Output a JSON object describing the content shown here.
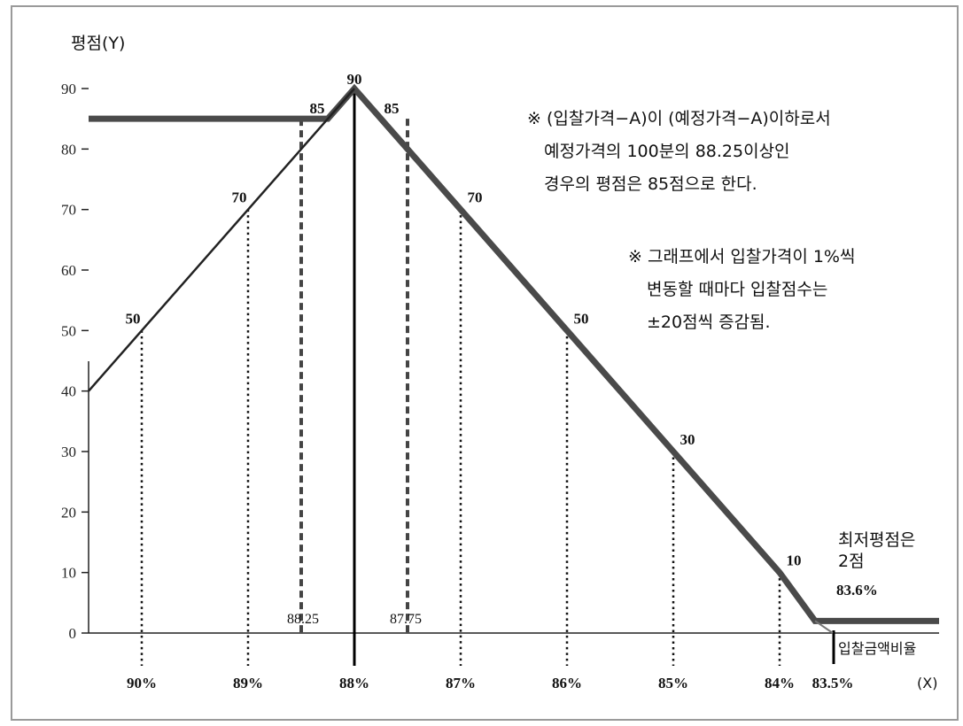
{
  "chart_data": {
    "type": "line",
    "ylabel": "평점(Y)",
    "ylim": [
      0,
      90
    ],
    "yticks": [
      "0",
      "10",
      "20",
      "30",
      "40",
      "50",
      "60",
      "70",
      "80",
      "90"
    ],
    "xticks": [
      {
        "label": "90%",
        "value": 90
      },
      {
        "label": "89%",
        "value": 89
      },
      {
        "label": "88%",
        "value": 88
      },
      {
        "label": "87%",
        "value": 87
      },
      {
        "label": "86%",
        "value": 86
      },
      {
        "label": "85%",
        "value": 85
      },
      {
        "label": "84%",
        "value": 84
      },
      {
        "label": "83.5%",
        "value": 83.5
      }
    ],
    "x_axis_unit": "(X)",
    "x_axis_name": "입찰금액비율",
    "series": [
      {
        "style": "thick",
        "points": [
          {
            "x": 90.48,
            "y": 85
          },
          {
            "x": 88.25,
            "y": 85
          },
          {
            "x": 88,
            "y": 90
          },
          {
            "x": 87,
            "y": 70
          },
          {
            "x": 86,
            "y": 50
          },
          {
            "x": 85,
            "y": 30
          },
          {
            "x": 84,
            "y": 10
          },
          {
            "x": 83.6,
            "y": 2
          },
          {
            "x": 82.9,
            "y": 2
          }
        ]
      },
      {
        "style": "thin",
        "points": [
          {
            "x": 90.48,
            "y": 40
          },
          {
            "x": 90,
            "y": 50
          },
          {
            "x": 89,
            "y": 70
          },
          {
            "x": 88.25,
            "y": 85
          },
          {
            "x": 88,
            "y": 90
          }
        ]
      }
    ],
    "point_labels": [
      {
        "text": "90",
        "x": 88,
        "y": 90
      },
      {
        "text": "85",
        "x": 88.25,
        "y": 85,
        "side": "left"
      },
      {
        "text": "85",
        "x": 87.75,
        "y": 85,
        "side": "right"
      },
      {
        "text": "70",
        "x": 89,
        "y": 70
      },
      {
        "text": "70",
        "x": 87,
        "y": 70
      },
      {
        "text": "50",
        "x": 90,
        "y": 50
      },
      {
        "text": "50",
        "x": 86,
        "y": 50
      },
      {
        "text": "30",
        "x": 85,
        "y": 30
      },
      {
        "text": "10",
        "x": 84,
        "y": 10
      }
    ],
    "dotted_guides": [
      {
        "x": 90,
        "y": 50
      },
      {
        "x": 89,
        "y": 70
      },
      {
        "x": 87,
        "y": 70
      },
      {
        "x": 86,
        "y": 50
      },
      {
        "x": 85,
        "y": 30
      },
      {
        "x": 84,
        "y": 10
      }
    ],
    "dashed_guides": [
      {
        "x": 88.25,
        "y": 85,
        "label": "88.25"
      },
      {
        "x": 87.75,
        "y": 85,
        "label": "87.75"
      }
    ],
    "solid_guides": [
      {
        "x": 88,
        "y": 90
      }
    ],
    "annotations": {
      "note1": [
        "※ (입찰가격−A)이 (예정가격−A)이하로서",
        "예정가격의 100분의 88.25이상인",
        "경우의 평점은 85점으로 한다."
      ],
      "note2": [
        "※ 그래프에서 입찰가격이 1%씩",
        "변동할 때마다 입찰점수는",
        "±20점씩 증감됨."
      ],
      "min_score": [
        "최저평점은",
        "2점"
      ],
      "min_ratio": "83.6%"
    },
    "grid": false
  }
}
